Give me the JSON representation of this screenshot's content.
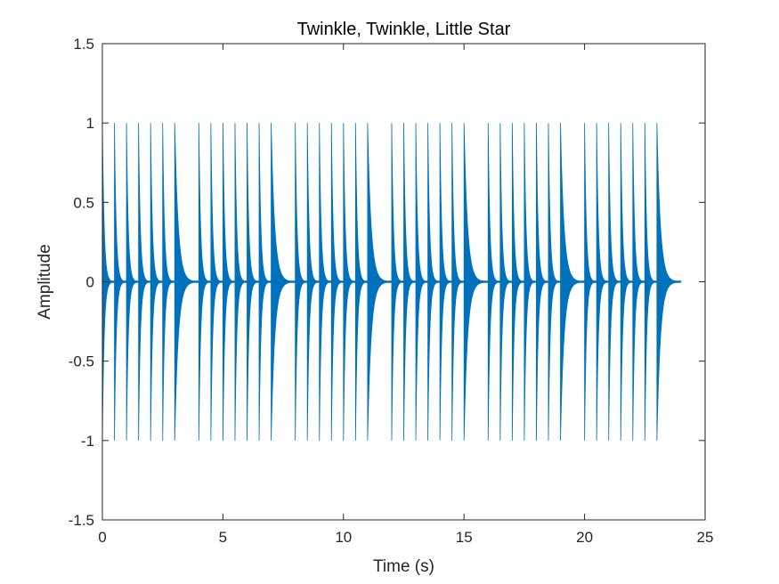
{
  "chart_data": {
    "type": "line",
    "title": "Twinkle, Twinkle, Little Star",
    "xlabel": "Time (s)",
    "ylabel": "Amplitude",
    "xlim": [
      0,
      25
    ],
    "ylim": [
      -1.5,
      1.5
    ],
    "xticks": [
      0,
      5,
      10,
      15,
      20,
      25
    ],
    "xtick_labels": [
      "0",
      "5",
      "10",
      "15",
      "20",
      "25"
    ],
    "yticks": [
      -1.5,
      -1,
      -0.5,
      0,
      0.5,
      1,
      1.5
    ],
    "ytick_labels": [
      "-1.5",
      "-1",
      "-0.5",
      "0",
      "0.5",
      "1",
      "1.5"
    ],
    "grid": false,
    "legend": "none",
    "series_color": "#0072BD",
    "series": [
      {
        "note_onsets_s": [
          0,
          0.5,
          1,
          1.5,
          2,
          2.5,
          3,
          4,
          4.5,
          5,
          5.5,
          6,
          6.5,
          7,
          8,
          8.5,
          9,
          9.5,
          10,
          10.5,
          11,
          12,
          12.5,
          13,
          13.5,
          14,
          14.5,
          15,
          16,
          16.5,
          17,
          17.5,
          18,
          18.5,
          19,
          20,
          20.5,
          21,
          21.5,
          22,
          22.5,
          23
        ],
        "note_durations_s": [
          0.5,
          0.5,
          0.5,
          0.5,
          0.5,
          0.5,
          1,
          0.5,
          0.5,
          0.5,
          0.5,
          0.5,
          0.5,
          1,
          0.5,
          0.5,
          0.5,
          0.5,
          0.5,
          0.5,
          1,
          0.5,
          0.5,
          0.5,
          0.5,
          0.5,
          0.5,
          1,
          0.5,
          0.5,
          0.5,
          0.5,
          0.5,
          0.5,
          1,
          0.5,
          0.5,
          0.5,
          0.5,
          0.5,
          0.5,
          1
        ],
        "peak_amplitude": 1,
        "signal_end_s": 24
      }
    ]
  }
}
